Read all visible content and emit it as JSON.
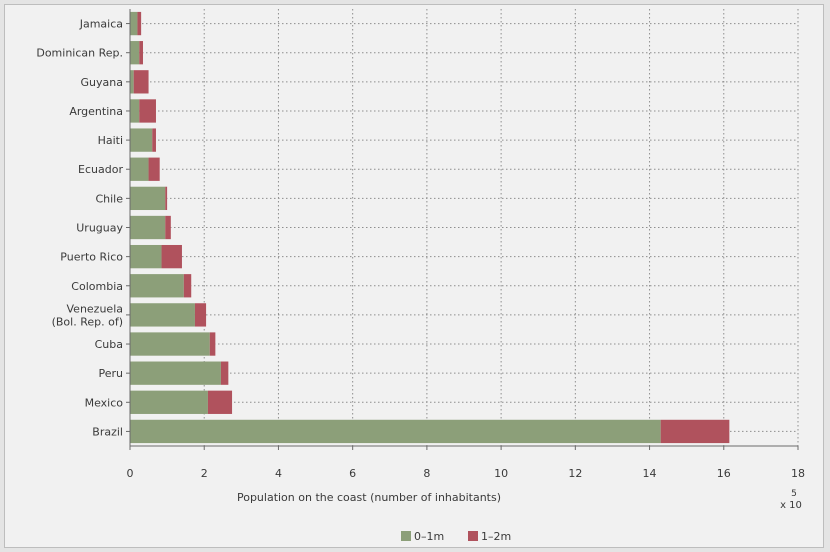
{
  "chart_data": {
    "type": "bar",
    "orientation": "horizontal",
    "stacked": true,
    "title": "",
    "xlabel": "Population on the coast (number of inhabitants)",
    "ylabel": "",
    "x_scale_exponent_label": "5",
    "x_scale_multiplier_label": "x 10",
    "xlim": [
      0,
      18
    ],
    "xticks": [
      0,
      2,
      4,
      6,
      8,
      10,
      12,
      14,
      16,
      18
    ],
    "grid": true,
    "legend_position": "bottom-center",
    "categories": [
      "Jamaica",
      "Dominican Rep.",
      "Guyana",
      "Argentina",
      "Haiti",
      "Ecuador",
      "Chile",
      "Uruguay",
      "Puerto Rico",
      "Colombia",
      "Venezuela\n(Bol. Rep. of)",
      "Cuba",
      "Peru",
      "Mexico",
      "Brazil"
    ],
    "series": [
      {
        "name": "0–1m",
        "color": "#8c9f79",
        "values": [
          0.2,
          0.25,
          0.1,
          0.25,
          0.6,
          0.5,
          0.95,
          0.95,
          0.85,
          1.45,
          1.75,
          2.15,
          2.45,
          2.1,
          14.3
        ]
      },
      {
        "name": "1–2m",
        "color": "#b0525d",
        "values": [
          0.1,
          0.1,
          0.4,
          0.45,
          0.1,
          0.3,
          0.05,
          0.15,
          0.55,
          0.2,
          0.3,
          0.15,
          0.2,
          0.65,
          1.85
        ]
      }
    ]
  }
}
